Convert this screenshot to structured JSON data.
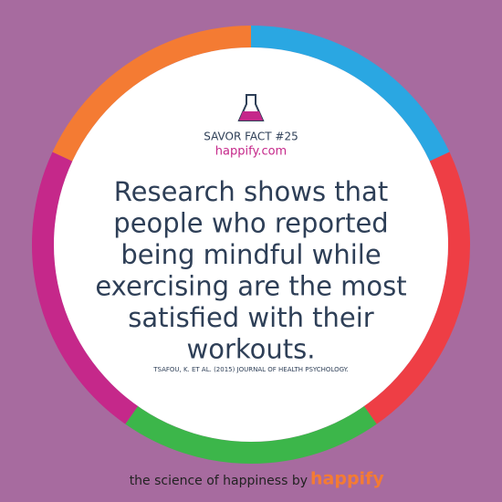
{
  "header": {
    "label": "SAVOR FACT #25",
    "site": "happify.com"
  },
  "fact": {
    "lines": [
      "Research shows that",
      "people who reported",
      "being mindful while",
      "exercising are the most",
      "satisfied with their",
      "workouts."
    ]
  },
  "citation": "TSAFOU, K. ET AL. (2015) JOURNAL OF HEALTH PSYCHOLOGY.",
  "footer": {
    "tagline": "the science of happiness by",
    "brand": "happify"
  }
}
